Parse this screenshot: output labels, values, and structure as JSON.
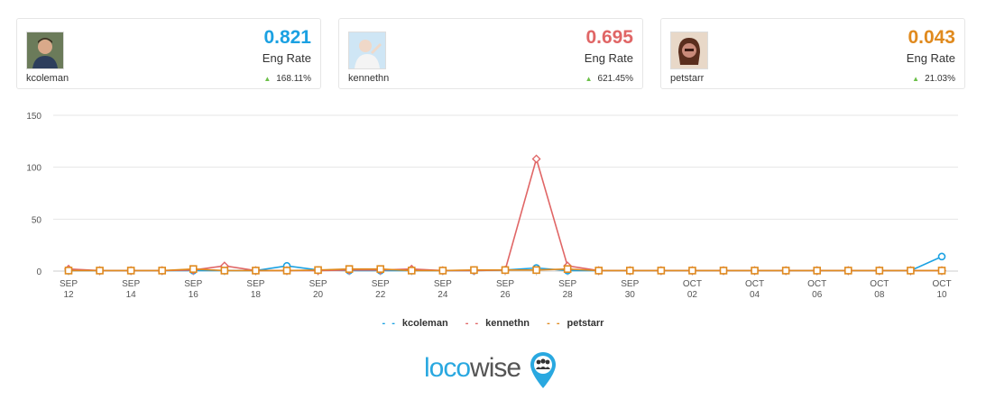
{
  "cards": [
    {
      "username": "kcoleman",
      "value": "0.821",
      "label": "Eng Rate",
      "delta": "168.11%",
      "color": "#1ba1e2"
    },
    {
      "username": "kennethn",
      "value": "0.695",
      "label": "Eng Rate",
      "delta": "621.45%",
      "color": "#e06666"
    },
    {
      "username": "petstarr",
      "value": "0.043",
      "label": "Eng Rate",
      "delta": "21.03%",
      "color": "#e08a1e"
    }
  ],
  "chart_data": {
    "type": "line",
    "x": [
      "SEP 12",
      "SEP 13",
      "SEP 14",
      "SEP 15",
      "SEP 16",
      "SEP 17",
      "SEP 18",
      "SEP 19",
      "SEP 20",
      "SEP 21",
      "SEP 22",
      "SEP 23",
      "SEP 24",
      "SEP 25",
      "SEP 26",
      "SEP 27",
      "SEP 28",
      "SEP 29",
      "SEP 30",
      "OCT 01",
      "OCT 02",
      "OCT 03",
      "OCT 04",
      "OCT 05",
      "OCT 06",
      "OCT 07",
      "OCT 08",
      "OCT 09",
      "OCT 10"
    ],
    "tick_labels": [
      {
        "m": "SEP",
        "d": "12"
      },
      {
        "m": "SEP",
        "d": "14"
      },
      {
        "m": "SEP",
        "d": "16"
      },
      {
        "m": "SEP",
        "d": "18"
      },
      {
        "m": "SEP",
        "d": "20"
      },
      {
        "m": "SEP",
        "d": "22"
      },
      {
        "m": "SEP",
        "d": "24"
      },
      {
        "m": "SEP",
        "d": "26"
      },
      {
        "m": "SEP",
        "d": "28"
      },
      {
        "m": "SEP",
        "d": "30"
      },
      {
        "m": "OCT",
        "d": "02"
      },
      {
        "m": "OCT",
        "d": "04"
      },
      {
        "m": "OCT",
        "d": "06"
      },
      {
        "m": "OCT",
        "d": "08"
      },
      {
        "m": "OCT",
        "d": "10"
      }
    ],
    "ylim": [
      0,
      150
    ],
    "yticks": [
      "0",
      "50",
      "100",
      "150"
    ],
    "series": [
      {
        "name": "kcoleman",
        "color": "#1ba1e2",
        "marker": "circle",
        "values": [
          0.5,
          0.5,
          0.5,
          0.5,
          0.5,
          0.5,
          0.5,
          5,
          1,
          0.5,
          0.5,
          0.5,
          0.5,
          0.5,
          1,
          3,
          0.5,
          0.5,
          0.5,
          0.5,
          0.5,
          0.5,
          0.5,
          0.5,
          0.5,
          0.5,
          0.5,
          0.5,
          14
        ]
      },
      {
        "name": "kennethn",
        "color": "#e06666",
        "marker": "diamond",
        "values": [
          2,
          0.5,
          0.5,
          0.5,
          1,
          5,
          0.5,
          0.5,
          0.5,
          1,
          1,
          2,
          0.5,
          0.5,
          1,
          108,
          5,
          0.5,
          0.5,
          0.5,
          0.5,
          0.5,
          0.5,
          0.5,
          0.5,
          0.5,
          0.5,
          0.5,
          0.5
        ]
      },
      {
        "name": "petstarr",
        "color": "#e08a1e",
        "marker": "square",
        "values": [
          0.5,
          0.5,
          0.5,
          0.5,
          2,
          0.5,
          0.5,
          0.5,
          1,
          2,
          2,
          0.5,
          0.5,
          1,
          1,
          1,
          2,
          0.5,
          0.5,
          0.5,
          0.5,
          0.5,
          0.5,
          0.5,
          0.5,
          0.5,
          0.5,
          0.5,
          0.5
        ]
      }
    ]
  },
  "legend": [
    {
      "name": "kcoleman",
      "color": "#1ba1e2"
    },
    {
      "name": "kennethn",
      "color": "#e06666"
    },
    {
      "name": "petstarr",
      "color": "#e08a1e"
    }
  ],
  "logo": {
    "part1": "loco",
    "part2": "wise"
  }
}
